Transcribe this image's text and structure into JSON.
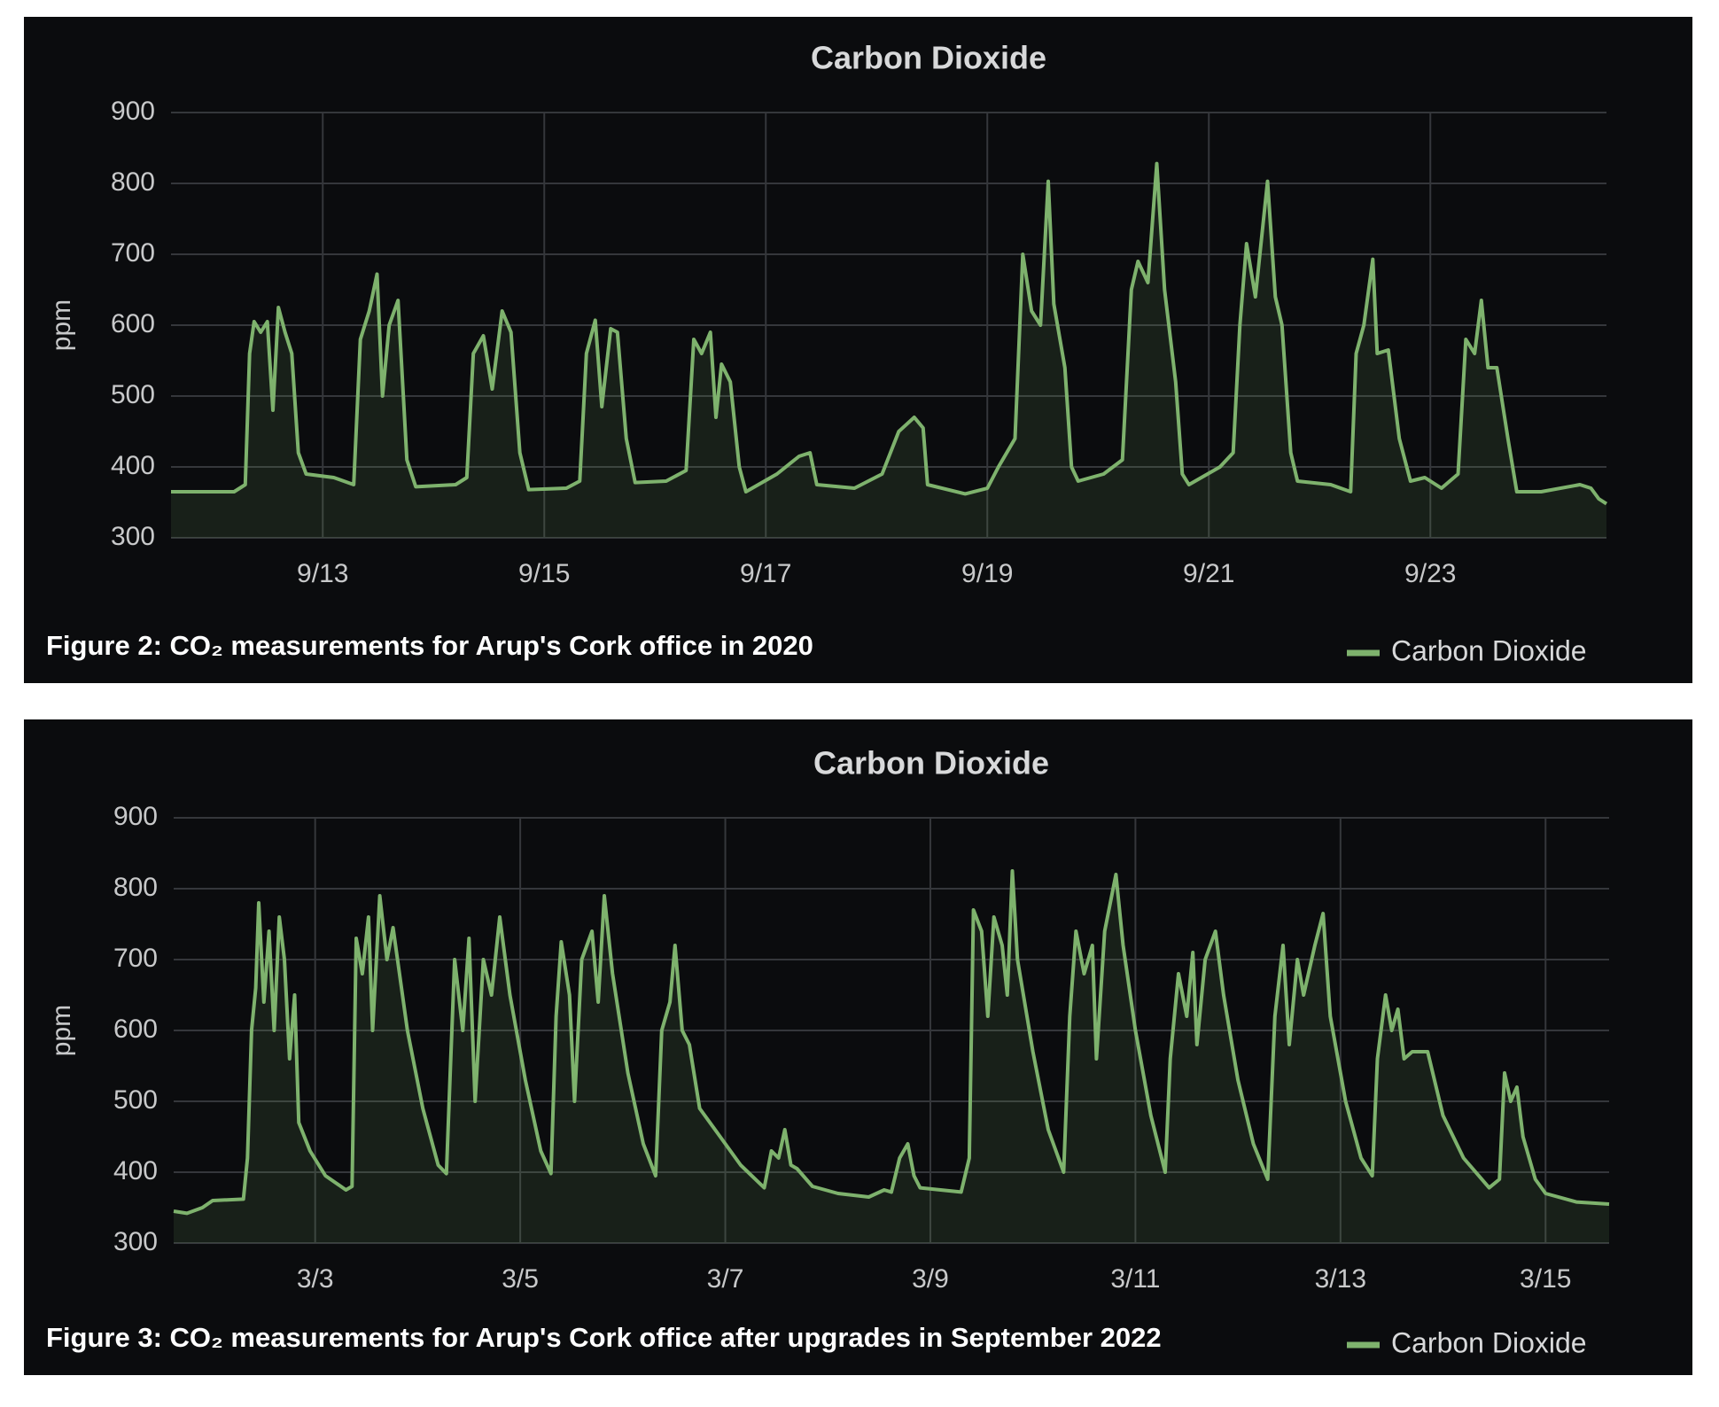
{
  "chart_data": [
    {
      "type": "line",
      "title": "Carbon Dioxide",
      "ylabel": "ppm",
      "caption": "Figure 2: CO₂ measurements for Arup's Cork office in 2020",
      "x": [
        11.63,
        12.2,
        12.3,
        12.34,
        12.38,
        12.44,
        12.5,
        12.55,
        12.6,
        12.66,
        12.72,
        12.78,
        12.85,
        13.1,
        13.28,
        13.34,
        13.42,
        13.49,
        13.54,
        13.6,
        13.68,
        13.76,
        13.84,
        14.2,
        14.3,
        14.36,
        14.45,
        14.53,
        14.62,
        14.7,
        14.78,
        14.86,
        15.2,
        15.32,
        15.38,
        15.46,
        15.52,
        15.6,
        15.66,
        15.74,
        15.82,
        16.1,
        16.28,
        16.35,
        16.42,
        16.5,
        16.55,
        16.6,
        16.68,
        16.76,
        16.82,
        17.1,
        17.3,
        17.4,
        17.46,
        17.8,
        18.05,
        18.2,
        18.34,
        18.42,
        18.46,
        18.8,
        19.0,
        19.1,
        19.25,
        19.32,
        19.4,
        19.48,
        19.55,
        19.6,
        19.7,
        19.76,
        19.82,
        20.05,
        20.22,
        20.3,
        20.36,
        20.45,
        20.53,
        20.6,
        20.7,
        20.76,
        20.82,
        21.1,
        21.22,
        21.28,
        21.34,
        21.42,
        21.53,
        21.6,
        21.66,
        21.74,
        21.8,
        22.1,
        22.28,
        22.33,
        22.4,
        22.48,
        22.52,
        22.62,
        22.72,
        22.82,
        22.95,
        23.1,
        23.25,
        23.32,
        23.4,
        23.46,
        23.52,
        23.6,
        23.7,
        23.78,
        24.0,
        24.35,
        24.45,
        24.52,
        24.59
      ],
      "series": [
        {
          "name": "Carbon Dioxide",
          "color": "#7eb26d",
          "values": [
            365,
            365,
            375,
            560,
            605,
            590,
            605,
            480,
            625,
            590,
            560,
            420,
            390,
            385,
            375,
            580,
            620,
            672,
            500,
            600,
            635,
            410,
            372,
            375,
            385,
            560,
            585,
            510,
            620,
            590,
            420,
            368,
            370,
            380,
            560,
            607,
            485,
            595,
            590,
            440,
            378,
            380,
            395,
            580,
            560,
            590,
            470,
            545,
            520,
            400,
            365,
            390,
            415,
            420,
            375,
            370,
            390,
            450,
            470,
            455,
            375,
            362,
            370,
            400,
            440,
            700,
            620,
            600,
            803,
            630,
            540,
            400,
            380,
            390,
            410,
            650,
            690,
            660,
            828,
            650,
            520,
            390,
            375,
            400,
            420,
            600,
            715,
            640,
            803,
            640,
            600,
            420,
            380,
            375,
            365,
            560,
            600,
            693,
            560,
            565,
            440,
            380,
            385,
            370,
            390,
            580,
            560,
            635,
            540,
            540,
            440,
            365,
            365,
            375,
            370,
            355,
            348
          ]
        }
      ],
      "xlim": [
        11.63,
        24.59
      ],
      "ylim": [
        300,
        900
      ],
      "xticks": [
        {
          "value": 13,
          "label": "9/13"
        },
        {
          "value": 15,
          "label": "9/15"
        },
        {
          "value": 17,
          "label": "9/17"
        },
        {
          "value": 19,
          "label": "9/19"
        },
        {
          "value": 21,
          "label": "9/21"
        },
        {
          "value": 23,
          "label": "9/23"
        }
      ],
      "yticks": [
        300,
        400,
        500,
        600,
        700,
        800,
        900
      ],
      "grid": true,
      "legend": "bottom-right"
    },
    {
      "type": "line",
      "title": "Carbon Dioxide",
      "ylabel": "ppm",
      "caption": "Figure 3: CO₂ measurements for Arup's Cork office after upgrades in September 2022",
      "x": [
        1.62,
        1.75,
        1.9,
        2.0,
        2.3,
        2.34,
        2.38,
        2.42,
        2.45,
        2.5,
        2.55,
        2.6,
        2.65,
        2.7,
        2.75,
        2.8,
        2.84,
        2.95,
        3.1,
        3.3,
        3.36,
        3.4,
        3.46,
        3.52,
        3.56,
        3.63,
        3.7,
        3.76,
        3.9,
        4.05,
        4.2,
        4.28,
        4.32,
        4.36,
        4.44,
        4.5,
        4.56,
        4.64,
        4.72,
        4.8,
        4.9,
        5.05,
        5.2,
        5.3,
        5.35,
        5.4,
        5.48,
        5.53,
        5.6,
        5.7,
        5.76,
        5.82,
        5.9,
        6.05,
        6.2,
        6.32,
        6.38,
        6.46,
        6.51,
        6.58,
        6.65,
        6.75,
        6.95,
        7.15,
        7.38,
        7.45,
        7.52,
        7.58,
        7.64,
        7.7,
        7.85,
        8.1,
        8.4,
        8.55,
        8.62,
        8.7,
        8.78,
        8.84,
        8.9,
        9.3,
        9.38,
        9.42,
        9.5,
        9.56,
        9.62,
        9.7,
        9.75,
        9.8,
        9.85,
        10.0,
        10.15,
        10.3,
        10.36,
        10.42,
        10.5,
        10.58,
        10.62,
        10.7,
        10.81,
        10.88,
        11.0,
        11.15,
        11.29,
        11.34,
        11.42,
        11.5,
        11.56,
        11.6,
        11.68,
        11.78,
        11.86,
        12.0,
        12.15,
        12.29,
        12.36,
        12.44,
        12.5,
        12.58,
        12.64,
        12.75,
        12.83,
        12.9,
        13.05,
        13.2,
        13.31,
        13.36,
        13.44,
        13.5,
        13.56,
        13.62,
        13.7,
        13.85,
        14.0,
        14.2,
        14.45,
        14.55,
        14.6,
        14.66,
        14.72,
        14.78,
        14.9,
        15.0,
        15.3,
        15.62
      ],
      "series": [
        {
          "name": "Carbon Dioxide",
          "color": "#7eb26d",
          "values": [
            345,
            342,
            350,
            360,
            362,
            420,
            600,
            660,
            780,
            640,
            740,
            600,
            760,
            700,
            560,
            650,
            470,
            430,
            395,
            375,
            380,
            730,
            680,
            760,
            600,
            790,
            700,
            745,
            600,
            490,
            410,
            398,
            550,
            700,
            600,
            730,
            500,
            700,
            650,
            760,
            650,
            530,
            430,
            398,
            620,
            725,
            650,
            500,
            700,
            740,
            640,
            790,
            680,
            540,
            440,
            395,
            600,
            640,
            720,
            600,
            580,
            490,
            450,
            410,
            378,
            430,
            420,
            460,
            410,
            405,
            380,
            370,
            365,
            375,
            372,
            420,
            440,
            395,
            378,
            372,
            420,
            770,
            740,
            620,
            760,
            720,
            650,
            825,
            700,
            570,
            460,
            400,
            620,
            740,
            680,
            720,
            560,
            740,
            820,
            720,
            600,
            480,
            400,
            560,
            680,
            620,
            710,
            580,
            700,
            740,
            650,
            530,
            440,
            390,
            620,
            720,
            580,
            700,
            650,
            720,
            765,
            620,
            500,
            420,
            395,
            560,
            650,
            600,
            630,
            560,
            570,
            570,
            480,
            420,
            378,
            390,
            540,
            500,
            520,
            450,
            390,
            370,
            358,
            355
          ]
        }
      ],
      "xlim": [
        1.62,
        15.62
      ],
      "ylim": [
        300,
        900
      ],
      "xticks": [
        {
          "value": 3,
          "label": "3/3"
        },
        {
          "value": 5,
          "label": "3/5"
        },
        {
          "value": 7,
          "label": "3/7"
        },
        {
          "value": 9,
          "label": "3/9"
        },
        {
          "value": 11,
          "label": "3/11"
        },
        {
          "value": 13,
          "label": "3/13"
        },
        {
          "value": 15,
          "label": "3/15"
        }
      ],
      "yticks": [
        300,
        400,
        500,
        600,
        700,
        800,
        900
      ],
      "grid": true,
      "legend": "bottom-right"
    }
  ]
}
